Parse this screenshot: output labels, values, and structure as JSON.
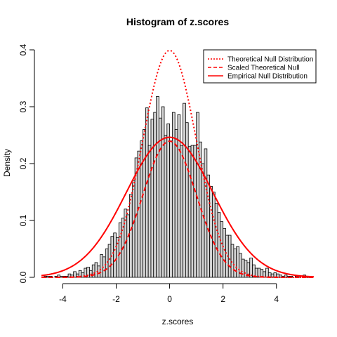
{
  "chart_data": {
    "type": "histogram",
    "title": "Histogram of z.scores",
    "xlabel": "z.scores",
    "ylabel": "Density",
    "xlim": [
      -4.8,
      5.4
    ],
    "ylim": [
      0,
      0.4
    ],
    "x_ticks": [
      "-4",
      "-2",
      "0",
      "2",
      "4"
    ],
    "y_ticks": [
      "0.0",
      "0.1",
      "0.2",
      "0.3",
      "0.4"
    ],
    "bin_width": 0.1,
    "bins": [
      {
        "x0": -4.7,
        "d": 0.002
      },
      {
        "x0": -4.6,
        "d": 0.002
      },
      {
        "x0": -4.5,
        "d": 0.002
      },
      {
        "x0": -4.4,
        "d": 0.0
      },
      {
        "x0": -4.3,
        "d": 0.002
      },
      {
        "x0": -4.2,
        "d": 0.004
      },
      {
        "x0": -4.1,
        "d": 0.002
      },
      {
        "x0": -4.0,
        "d": 0.002
      },
      {
        "x0": -3.9,
        "d": 0.002
      },
      {
        "x0": -3.8,
        "d": 0.006
      },
      {
        "x0": -3.7,
        "d": 0.004
      },
      {
        "x0": -3.6,
        "d": 0.01
      },
      {
        "x0": -3.5,
        "d": 0.006
      },
      {
        "x0": -3.4,
        "d": 0.012
      },
      {
        "x0": -3.3,
        "d": 0.008
      },
      {
        "x0": -3.2,
        "d": 0.016
      },
      {
        "x0": -3.1,
        "d": 0.018
      },
      {
        "x0": -3.0,
        "d": 0.012
      },
      {
        "x0": -2.9,
        "d": 0.022
      },
      {
        "x0": -2.8,
        "d": 0.026
      },
      {
        "x0": -2.7,
        "d": 0.02
      },
      {
        "x0": -2.6,
        "d": 0.04
      },
      {
        "x0": -2.5,
        "d": 0.036
      },
      {
        "x0": -2.4,
        "d": 0.05
      },
      {
        "x0": -2.3,
        "d": 0.058
      },
      {
        "x0": -2.2,
        "d": 0.072
      },
      {
        "x0": -2.1,
        "d": 0.078
      },
      {
        "x0": -2.0,
        "d": 0.07
      },
      {
        "x0": -1.9,
        "d": 0.096
      },
      {
        "x0": -1.8,
        "d": 0.104
      },
      {
        "x0": -1.7,
        "d": 0.12
      },
      {
        "x0": -1.6,
        "d": 0.11
      },
      {
        "x0": -1.5,
        "d": 0.146
      },
      {
        "x0": -1.4,
        "d": 0.17
      },
      {
        "x0": -1.3,
        "d": 0.21
      },
      {
        "x0": -1.2,
        "d": 0.222
      },
      {
        "x0": -1.1,
        "d": 0.24
      },
      {
        "x0": -1.0,
        "d": 0.26
      },
      {
        "x0": -0.9,
        "d": 0.298
      },
      {
        "x0": -0.8,
        "d": 0.232
      },
      {
        "x0": -0.7,
        "d": 0.278
      },
      {
        "x0": -0.6,
        "d": 0.29
      },
      {
        "x0": -0.5,
        "d": 0.318
      },
      {
        "x0": -0.4,
        "d": 0.28
      },
      {
        "x0": -0.3,
        "d": 0.3
      },
      {
        "x0": -0.2,
        "d": 0.25
      },
      {
        "x0": -0.1,
        "d": 0.27
      },
      {
        "x0": 0.0,
        "d": 0.24
      },
      {
        "x0": 0.1,
        "d": 0.29
      },
      {
        "x0": 0.2,
        "d": 0.26
      },
      {
        "x0": 0.3,
        "d": 0.286
      },
      {
        "x0": 0.4,
        "d": 0.232
      },
      {
        "x0": 0.5,
        "d": 0.306
      },
      {
        "x0": 0.6,
        "d": 0.272
      },
      {
        "x0": 0.7,
        "d": 0.23
      },
      {
        "x0": 0.8,
        "d": 0.232
      },
      {
        "x0": 0.9,
        "d": 0.232
      },
      {
        "x0": 1.0,
        "d": 0.29
      },
      {
        "x0": 1.1,
        "d": 0.238
      },
      {
        "x0": 1.2,
        "d": 0.2
      },
      {
        "x0": 1.3,
        "d": 0.226
      },
      {
        "x0": 1.4,
        "d": 0.18
      },
      {
        "x0": 1.5,
        "d": 0.16
      },
      {
        "x0": 1.6,
        "d": 0.15
      },
      {
        "x0": 1.7,
        "d": 0.13
      },
      {
        "x0": 1.8,
        "d": 0.114
      },
      {
        "x0": 1.9,
        "d": 0.098
      },
      {
        "x0": 2.0,
        "d": 0.086
      },
      {
        "x0": 2.1,
        "d": 0.074
      },
      {
        "x0": 2.2,
        "d": 0.074
      },
      {
        "x0": 2.3,
        "d": 0.058
      },
      {
        "x0": 2.4,
        "d": 0.05
      },
      {
        "x0": 2.5,
        "d": 0.054
      },
      {
        "x0": 2.6,
        "d": 0.042
      },
      {
        "x0": 2.7,
        "d": 0.032
      },
      {
        "x0": 2.8,
        "d": 0.03
      },
      {
        "x0": 2.9,
        "d": 0.026
      },
      {
        "x0": 3.0,
        "d": 0.034
      },
      {
        "x0": 3.1,
        "d": 0.022
      },
      {
        "x0": 3.2,
        "d": 0.016
      },
      {
        "x0": 3.3,
        "d": 0.016
      },
      {
        "x0": 3.4,
        "d": 0.014
      },
      {
        "x0": 3.5,
        "d": 0.01
      },
      {
        "x0": 3.6,
        "d": 0.016
      },
      {
        "x0": 3.7,
        "d": 0.008
      },
      {
        "x0": 3.8,
        "d": 0.006
      },
      {
        "x0": 3.9,
        "d": 0.008
      },
      {
        "x0": 4.0,
        "d": 0.006
      },
      {
        "x0": 4.1,
        "d": 0.004
      },
      {
        "x0": 4.2,
        "d": 0.002
      },
      {
        "x0": 4.3,
        "d": 0.004
      },
      {
        "x0": 4.4,
        "d": 0.002
      },
      {
        "x0": 4.5,
        "d": 0.002
      },
      {
        "x0": 4.6,
        "d": 0.0
      },
      {
        "x0": 4.7,
        "d": 0.002
      },
      {
        "x0": 4.8,
        "d": 0.002
      },
      {
        "x0": 4.9,
        "d": 0.0
      },
      {
        "x0": 5.0,
        "d": 0.004
      },
      {
        "x0": 5.1,
        "d": 0.002
      },
      {
        "x0": 5.2,
        "d": 0.002
      }
    ],
    "curves": [
      {
        "name": "Theoretical Null Distribution",
        "mean": 0,
        "sd": 1,
        "scale": 1,
        "style": "dotted",
        "color": "#ff0000"
      },
      {
        "name": "Scaled Theoretical Null",
        "mean": 0,
        "sd": 1,
        "scale": 0.6,
        "style": "dashed",
        "color": "#ff0000"
      },
      {
        "name": "Empirical Null Distribution",
        "mean": 0,
        "sd": 1.62,
        "scale": 1,
        "style": "solid",
        "color": "#ff0000"
      }
    ],
    "legend_position": "top-right",
    "bar_fill": "#d3d3d3",
    "bar_stroke": "#000000"
  }
}
